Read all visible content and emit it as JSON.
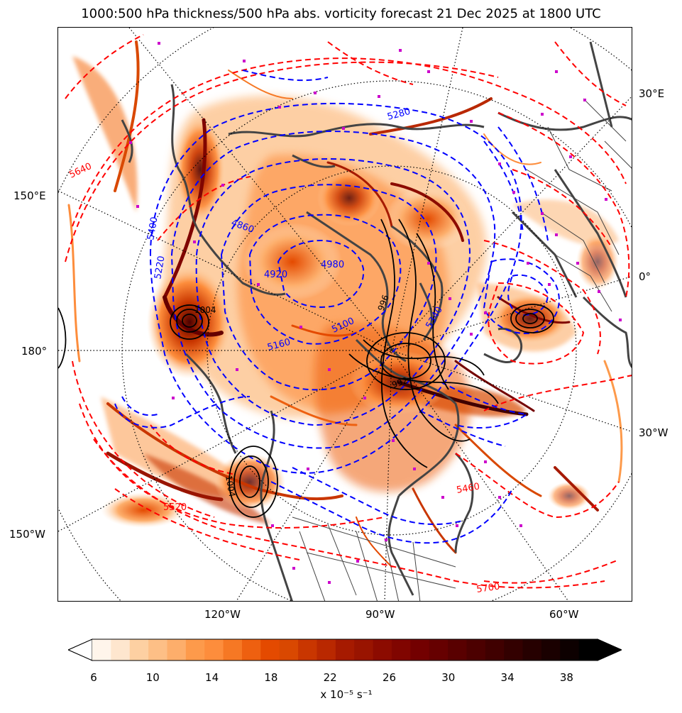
{
  "title": "1000:500 hPa thickness/500 hPa abs. vorticity forecast 21 Dec 2025 at 1800 UTC",
  "map": {
    "lon_labels_left": [
      "150°E",
      "180°",
      "150°W"
    ],
    "lon_labels_right": [
      "30°E",
      "0°",
      "30°W"
    ],
    "lon_labels_bottom": [
      "120°W",
      "90°W",
      "60°W"
    ],
    "thickness_labels_red": [
      "5640",
      "5520",
      "5460",
      "5700"
    ],
    "thickness_labels_blue": [
      "5280",
      "4860",
      "4920",
      "4980",
      "5100",
      "5160",
      "5220",
      "5400",
      "5340"
    ],
    "pressure_labels_black": [
      "1004",
      "996",
      "992"
    ],
    "colors": {
      "thickness_high": "#ff0000",
      "thickness_low": "#0000ff",
      "mslp": "#000000",
      "coastline": "#444444",
      "maxima_marker": "#cc00cc"
    }
  },
  "colorbar": {
    "ticks": [
      "6",
      "10",
      "14",
      "18",
      "22",
      "26",
      "30",
      "34",
      "38"
    ],
    "unit_label": "x 10⁻⁵ s⁻¹",
    "colors": [
      "#fff5eb",
      "#fee6ce",
      "#fdd0a2",
      "#fdbf86",
      "#fdae6b",
      "#fd9a4b",
      "#fd8d3c",
      "#f67824",
      "#ee6010",
      "#e44a00",
      "#d94801",
      "#c93600",
      "#b92800",
      "#a61a00",
      "#991400",
      "#8c0b00",
      "#800500",
      "#730000",
      "#660000",
      "#590000",
      "#4c0000",
      "#400000",
      "#330000",
      "#260000",
      "#1a0000",
      "#0d0000",
      "#000000"
    ]
  }
}
